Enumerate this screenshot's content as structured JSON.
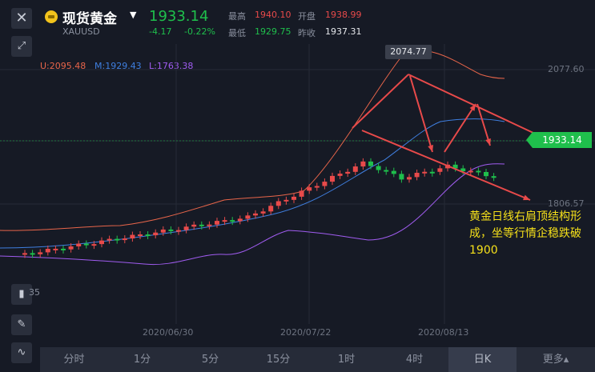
{
  "header": {
    "title": "现货黄金",
    "symbol": "XAUUSD",
    "price": "1933.14",
    "change": "-4.17",
    "change_pct": "-0.22%",
    "high_label": "最高",
    "high_value": "1940.10",
    "open_label": "开盘",
    "open_value": "1938.99",
    "low_label": "最低",
    "low_value": "1929.75",
    "prev_close_label": "昨收",
    "prev_close_value": "1937.31"
  },
  "indicators": {
    "upper": "U:2095.48",
    "middle": "M:1929.43",
    "lower": "L:1763.38"
  },
  "chart": {
    "peak_label": "2074.77",
    "right_levels": [
      "2077.60",
      "1806.57"
    ],
    "last_price_tag": "1933.14",
    "left_partial": "35",
    "dates": [
      "2020/06/30",
      "2020/07/22",
      "2020/08/13"
    ],
    "annotation": "黄金日线右肩顶结构形成，坐等行情企稳跌破1900"
  },
  "chart_data": {
    "type": "candlestick",
    "annotations": [
      "2074.77",
      "黄金日线右肩顶结构形成，坐等行情企稳跌破1900"
    ],
    "y_labels": [
      "2077.60",
      "1806.57"
    ],
    "x_labels": [
      "2020/06/30",
      "2020/07/22",
      "2020/08/13"
    ],
    "last_price": 1933.14
  },
  "tabs": [
    {
      "label": "分时"
    },
    {
      "label": "1分"
    },
    {
      "label": "5分"
    },
    {
      "label": "15分"
    },
    {
      "label": "1时"
    },
    {
      "label": "4时"
    },
    {
      "label": "日K"
    },
    {
      "label": "更多▴"
    }
  ],
  "colors": {
    "up": "#e84a4a",
    "down": "#1fbf4c",
    "upper_band": "#e8654a",
    "middle_band": "#3f7fe0",
    "lower_band": "#a05cf0",
    "annotation": "#f5e01a"
  }
}
